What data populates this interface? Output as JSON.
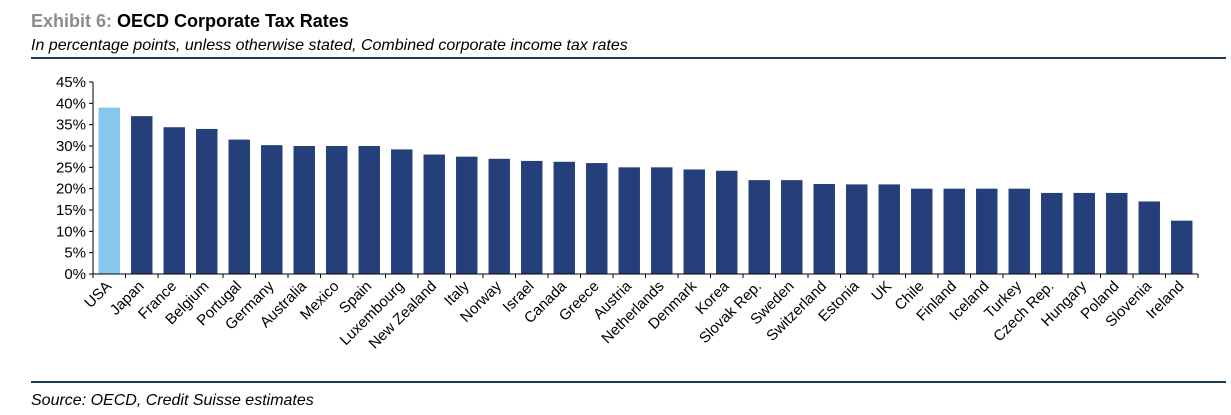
{
  "header": {
    "exhibit_label": "Exhibit 6:",
    "title": "OECD Corporate Tax Rates",
    "subtitle": "In percentage points, unless otherwise stated, Combined corporate income tax rates"
  },
  "footer": {
    "source": "Source: OECD, Credit Suisse estimates"
  },
  "colors": {
    "highlight": "#87c8ee",
    "bar": "#253f7a",
    "rule": "#1f3a5a"
  },
  "chart_data": {
    "type": "bar",
    "title": "OECD Corporate Tax Rates",
    "categories": [
      "USA",
      "Japan",
      "France",
      "Belgium",
      "Portugal",
      "Germany",
      "Australia",
      "Mexico",
      "Spain",
      "Luxembourg",
      "New Zealand",
      "Italy",
      "Norway",
      "Israel",
      "Canada",
      "Greece",
      "Austria",
      "Netherlands",
      "Denmark",
      "Korea",
      "Slovak Rep.",
      "Sweden",
      "Switzerland",
      "Estonia",
      "UK",
      "Chile",
      "Finland",
      "Iceland",
      "Turkey",
      "Czech Rep.",
      "Hungary",
      "Poland",
      "Slovenia",
      "Ireland"
    ],
    "values": [
      39.0,
      37.0,
      34.4,
      34.0,
      31.5,
      30.2,
      30.0,
      30.0,
      30.0,
      29.2,
      28.0,
      27.5,
      27.0,
      26.5,
      26.3,
      26.0,
      25.0,
      25.0,
      24.5,
      24.2,
      22.0,
      22.0,
      21.1,
      21.0,
      21.0,
      20.0,
      20.0,
      20.0,
      20.0,
      19.0,
      19.0,
      19.0,
      17.0,
      12.5
    ],
    "highlight_category": "USA",
    "ylim": [
      0,
      45
    ],
    "yticks": [
      0,
      5,
      10,
      15,
      20,
      25,
      30,
      35,
      40,
      45
    ],
    "ytick_labels": [
      "0%",
      "5%",
      "10%",
      "15%",
      "20%",
      "25%",
      "30%",
      "35%",
      "40%",
      "45%"
    ],
    "grid": false,
    "legend": "none"
  }
}
